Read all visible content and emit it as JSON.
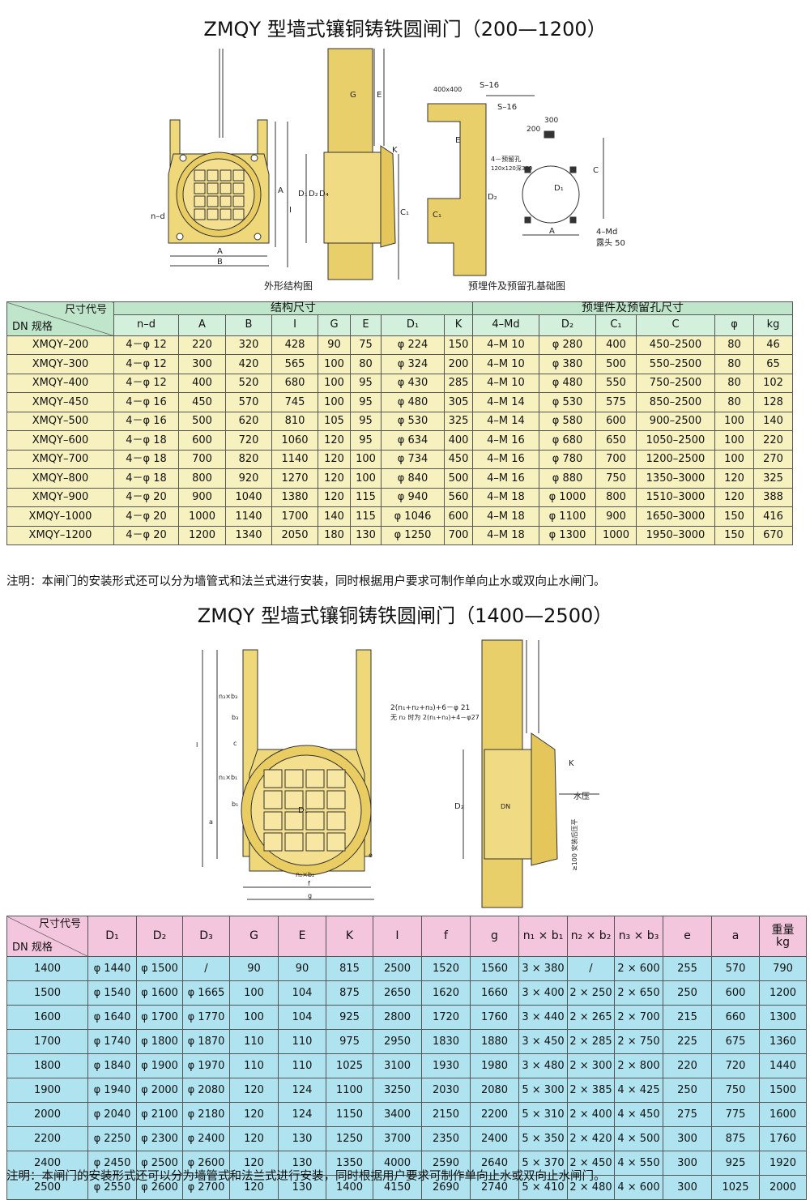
{
  "section1": {
    "title": "ZMQY 型墙式镶铜铸铁圆闸门（200—1200）",
    "diagram": {
      "captions": [
        "外形结构图",
        "预埋件及预留孔基础图"
      ],
      "labels": [
        "n–d",
        "A",
        "B",
        "I",
        "A",
        "G",
        "E",
        "D₁",
        "D₂",
        "D₄",
        "K",
        "C₁",
        "400x400",
        "S–16",
        "S–16",
        "200",
        "300",
        "4－预留孔",
        "120x120深300",
        "E",
        "D₂",
        "C₁",
        "C",
        "D₁",
        "A",
        "4–Md",
        "露头 50"
      ]
    },
    "table": {
      "corner": [
        "尺寸代号",
        "DN 规格"
      ],
      "groups": [
        "结构尺寸",
        "预埋件及预留孔尺寸"
      ],
      "columns": [
        "n–d",
        "A",
        "B",
        "I",
        "G",
        "E",
        "D₁",
        "K",
        "4–Md",
        "D₂",
        "C₁",
        "C",
        "φ",
        "kg"
      ],
      "rows": [
        [
          "XMQY–200",
          "4－φ 12",
          220,
          320,
          428,
          90,
          75,
          "φ 224",
          150,
          "4–M 10",
          "φ 280",
          400,
          "450–2500",
          80,
          46
        ],
        [
          "XMQY–300",
          "4－φ 12",
          300,
          420,
          565,
          100,
          80,
          "φ 324",
          200,
          "4–M 10",
          "φ 380",
          500,
          "550–2500",
          80,
          65
        ],
        [
          "XMQY–400",
          "4－φ 12",
          400,
          520,
          680,
          100,
          95,
          "φ 430",
          285,
          "4–M 10",
          "φ 480",
          550,
          "750–2500",
          80,
          102
        ],
        [
          "XMQY–450",
          "4－φ 16",
          450,
          570,
          745,
          100,
          95,
          "φ 480",
          305,
          "4–M 14",
          "φ 530",
          575,
          "850–2500",
          80,
          128
        ],
        [
          "XMQY–500",
          "4－φ 16",
          500,
          620,
          810,
          105,
          95,
          "φ 530",
          325,
          "4–M 14",
          "φ 580",
          600,
          "900–2500",
          100,
          140
        ],
        [
          "XMQY–600",
          "4－φ 18",
          600,
          720,
          1060,
          120,
          95,
          "φ 634",
          400,
          "4–M 16",
          "φ 680",
          650,
          "1050–2500",
          100,
          220
        ],
        [
          "XMQY–700",
          "4－φ 18",
          700,
          820,
          1140,
          120,
          100,
          "φ 734",
          450,
          "4–M 16",
          "φ 780",
          700,
          "1200–2500",
          100,
          270
        ],
        [
          "XMQY–800",
          "4－φ 18",
          800,
          920,
          1270,
          120,
          100,
          "φ 840",
          500,
          "4–M 16",
          "φ 880",
          750,
          "1350–3000",
          120,
          325
        ],
        [
          "XMQY–900",
          "4－φ 20",
          900,
          1040,
          1380,
          120,
          115,
          "φ 940",
          560,
          "4–M 18",
          "φ 1000",
          800,
          "1510–3000",
          120,
          388
        ],
        [
          "XMQY–1000",
          "4－φ 20",
          1000,
          1140,
          1700,
          140,
          115,
          "φ 1046",
          600,
          "4–M 18",
          "φ 1100",
          900,
          "1650–3000",
          150,
          416
        ],
        [
          "XMQY–1200",
          "4－φ 20",
          1200,
          1340,
          2050,
          180,
          130,
          "φ 1250",
          700,
          "4–M 18",
          "φ 1300",
          1000,
          "1950–3000",
          150,
          670
        ]
      ]
    },
    "note": "注明：本闸门的安装形式还可以分为墙管式和法兰式进行安装，同时根据用户要求可制作单向止水或双向止水闸门。"
  },
  "section2": {
    "title": "ZMQY 型墙式镶铜铸铁圆闸门（1400—2500）",
    "diagram": {
      "labels": [
        "2(n₁+n₂+n₃)+6－φ 21",
        "无 n₂ 时为 2(n₁+n₃)+4－φ27",
        "n₃×b₃",
        "b₃",
        "c",
        "n₁×b₁",
        "b₁",
        "a",
        "I",
        "D₁",
        "n₂×b₂",
        "f",
        "g",
        "K",
        "水压",
        "≥100 安装后压平",
        "D₂",
        "DN",
        "e"
      ]
    },
    "table": {
      "corner": [
        "尺寸代号",
        "DN 规格"
      ],
      "columns": [
        "D₁",
        "D₂",
        "D₃",
        "G",
        "E",
        "K",
        "I",
        "f",
        "g",
        "n₁ × b₁",
        "n₂ × b₂",
        "n₃ × b₃",
        "e",
        "a",
        "重量\nkg"
      ],
      "rows": [
        [
          1400,
          "φ 1440",
          "φ 1500",
          "/",
          90,
          90,
          815,
          2500,
          1520,
          1560,
          "3 × 380",
          "/",
          "2 × 600",
          255,
          570,
          790
        ],
        [
          1500,
          "φ 1540",
          "φ 1600",
          "φ 1665",
          100,
          104,
          875,
          2650,
          1620,
          1660,
          "3 × 400",
          "2 × 250",
          "2 × 650",
          250,
          600,
          1200
        ],
        [
          1600,
          "φ 1640",
          "φ 1700",
          "φ 1770",
          100,
          104,
          925,
          2800,
          1720,
          1760,
          "3 × 440",
          "2 × 265",
          "2 × 700",
          215,
          660,
          1300
        ],
        [
          1700,
          "φ 1740",
          "φ 1800",
          "φ 1870",
          110,
          110,
          975,
          2950,
          1830,
          1880,
          "3 × 450",
          "2 × 285",
          "2 × 750",
          225,
          675,
          1360
        ],
        [
          1800,
          "φ 1840",
          "φ 1900",
          "φ 1970",
          110,
          110,
          1025,
          3100,
          1930,
          1980,
          "3 × 480",
          "2 × 300",
          "2 × 800",
          220,
          720,
          1440
        ],
        [
          1900,
          "φ 1940",
          "φ 2000",
          "φ 2080",
          120,
          124,
          1100,
          3250,
          2030,
          2080,
          "5 × 300",
          "2 × 385",
          "4 × 425",
          250,
          750,
          1500
        ],
        [
          2000,
          "φ 2040",
          "φ 2100",
          "φ 2180",
          120,
          124,
          1150,
          3400,
          2150,
          2200,
          "5 × 310",
          "2 × 400",
          "4 × 450",
          275,
          775,
          1600
        ],
        [
          2200,
          "φ 2250",
          "φ 2300",
          "φ 2400",
          120,
          130,
          1250,
          3700,
          2350,
          2400,
          "5 × 350",
          "2 × 420",
          "4 × 500",
          300,
          875,
          1760
        ],
        [
          2400,
          "φ 2450",
          "φ 2500",
          "φ 2600",
          120,
          130,
          1350,
          4000,
          2590,
          2640,
          "5 × 370",
          "2 × 450",
          "4 × 550",
          300,
          925,
          1920
        ],
        [
          2500,
          "φ 2550",
          "φ 2600",
          "φ 2700",
          120,
          130,
          1400,
          4150,
          2690,
          2740,
          "5 × 410",
          "2 × 480",
          "4 × 600",
          300,
          1025,
          2000
        ]
      ]
    },
    "note": "注明：本闸门的安装形式还可以分为墙管式和法兰式进行安装，同时根据用户要求可制作单向止水或双向止水闸门。"
  }
}
